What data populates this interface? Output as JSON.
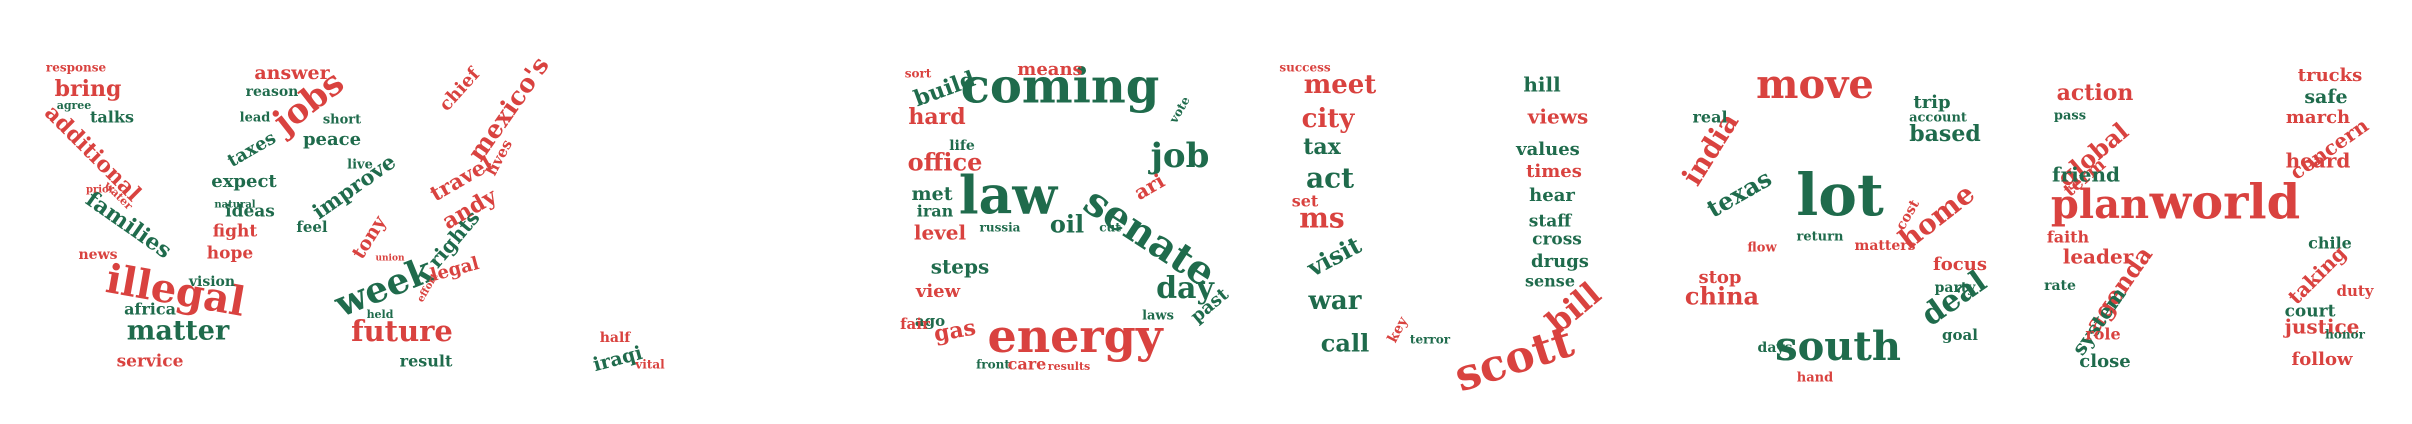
{
  "colors": {
    "red": "#d9423f",
    "green": "#1f6b4c",
    "background": "#ffffff"
  },
  "words": [
    {
      "text": "illegal",
      "color": "red",
      "letter": "W"
    },
    {
      "text": "matter",
      "color": "green",
      "letter": "W"
    },
    {
      "text": "jobs",
      "color": "red",
      "letter": "W"
    },
    {
      "text": "week",
      "color": "green",
      "letter": "W"
    },
    {
      "text": "future",
      "color": "red",
      "letter": "W"
    },
    {
      "text": "families",
      "color": "green",
      "letter": "W"
    },
    {
      "text": "bring",
      "color": "red",
      "letter": "W"
    },
    {
      "text": "additional",
      "color": "red",
      "letter": "W"
    },
    {
      "text": "talks",
      "color": "green",
      "letter": "W"
    },
    {
      "text": "answer",
      "color": "red",
      "letter": "W"
    },
    {
      "text": "reason",
      "color": "green",
      "letter": "W"
    },
    {
      "text": "peace",
      "color": "green",
      "letter": "W"
    },
    {
      "text": "improve",
      "color": "green",
      "letter": "W"
    },
    {
      "text": "taxes",
      "color": "green",
      "letter": "W"
    },
    {
      "text": "expect",
      "color": "green",
      "letter": "W"
    },
    {
      "text": "ideas",
      "color": "green",
      "letter": "W"
    },
    {
      "text": "fight",
      "color": "red",
      "letter": "W"
    },
    {
      "text": "hope",
      "color": "red",
      "letter": "W"
    },
    {
      "text": "feel",
      "color": "green",
      "letter": "W"
    },
    {
      "text": "tony",
      "color": "red",
      "letter": "W"
    },
    {
      "text": "africa",
      "color": "green",
      "letter": "W"
    },
    {
      "text": "service",
      "color": "red",
      "letter": "W"
    },
    {
      "text": "result",
      "color": "green",
      "letter": "W"
    },
    {
      "text": "mexico's",
      "color": "red",
      "letter": "W"
    },
    {
      "text": "chief",
      "color": "red",
      "letter": "W"
    },
    {
      "text": "travel",
      "color": "red",
      "letter": "W"
    },
    {
      "text": "lives",
      "color": "red",
      "letter": "W"
    },
    {
      "text": "andy",
      "color": "red",
      "letter": "W"
    },
    {
      "text": "rights",
      "color": "green",
      "letter": "W"
    },
    {
      "text": "legal",
      "color": "red",
      "letter": "W"
    },
    {
      "text": "news",
      "color": "red",
      "letter": "W"
    },
    {
      "text": "vision",
      "color": "green",
      "letter": "W"
    },
    {
      "text": "lead",
      "color": "green",
      "letter": "W"
    },
    {
      "text": "short",
      "color": "green",
      "letter": "W"
    },
    {
      "text": "live",
      "color": "green",
      "letter": "W"
    },
    {
      "text": "held",
      "color": "green",
      "letter": "W"
    },
    {
      "text": "response",
      "color": "red",
      "letter": "W"
    },
    {
      "text": "agree",
      "color": "green",
      "letter": "W"
    },
    {
      "text": "water",
      "color": "red",
      "letter": "W"
    },
    {
      "text": "prior",
      "color": "red",
      "letter": "W"
    },
    {
      "text": "natural",
      "color": "green",
      "letter": "W"
    },
    {
      "text": "union",
      "color": "red",
      "letter": "W"
    },
    {
      "text": "effort",
      "color": "red",
      "letter": "W"
    },
    {
      "text": "half",
      "color": "red",
      "letter": "."
    },
    {
      "text": "iraqi",
      "color": "green",
      "letter": "."
    },
    {
      "text": "vital",
      "color": "red",
      "letter": "."
    },
    {
      "text": "coming",
      "color": "green",
      "letter": "B"
    },
    {
      "text": "law",
      "color": "green",
      "letter": "B"
    },
    {
      "text": "energy",
      "color": "red",
      "letter": "B"
    },
    {
      "text": "senate",
      "color": "green",
      "letter": "B"
    },
    {
      "text": "job",
      "color": "green",
      "letter": "B"
    },
    {
      "text": "day",
      "color": "green",
      "letter": "B"
    },
    {
      "text": "means",
      "color": "red",
      "letter": "B"
    },
    {
      "text": "build",
      "color": "green",
      "letter": "B"
    },
    {
      "text": "hard",
      "color": "red",
      "letter": "B"
    },
    {
      "text": "office",
      "color": "red",
      "letter": "B"
    },
    {
      "text": "life",
      "color": "green",
      "letter": "B"
    },
    {
      "text": "met",
      "color": "green",
      "letter": "B"
    },
    {
      "text": "iran",
      "color": "green",
      "letter": "B"
    },
    {
      "text": "level",
      "color": "red",
      "letter": "B"
    },
    {
      "text": "oil",
      "color": "green",
      "letter": "B"
    },
    {
      "text": "steps",
      "color": "green",
      "letter": "B"
    },
    {
      "text": "view",
      "color": "red",
      "letter": "B"
    },
    {
      "text": "ago",
      "color": "green",
      "letter": "B"
    },
    {
      "text": "gas",
      "color": "red",
      "letter": "B"
    },
    {
      "text": "fair",
      "color": "red",
      "letter": "B"
    },
    {
      "text": "ari",
      "color": "red",
      "letter": "B"
    },
    {
      "text": "past",
      "color": "green",
      "letter": "B"
    },
    {
      "text": "care",
      "color": "red",
      "letter": "B"
    },
    {
      "text": "laws",
      "color": "green",
      "letter": "B"
    },
    {
      "text": "front",
      "color": "green",
      "letter": "B"
    },
    {
      "text": "cut",
      "color": "green",
      "letter": "B"
    },
    {
      "text": "sort",
      "color": "red",
      "letter": "B"
    },
    {
      "text": "vote",
      "color": "green",
      "letter": "B"
    },
    {
      "text": "russia",
      "color": "green",
      "letter": "B"
    },
    {
      "text": "results",
      "color": "red",
      "letter": "B"
    },
    {
      "text": "scott",
      "color": "red",
      "letter": "U"
    },
    {
      "text": "bill",
      "color": "red",
      "letter": "U"
    },
    {
      "text": "meet",
      "color": "red",
      "letter": "U"
    },
    {
      "text": "city",
      "color": "red",
      "letter": "U"
    },
    {
      "text": "tax",
      "color": "green",
      "letter": "U"
    },
    {
      "text": "act",
      "color": "green",
      "letter": "U"
    },
    {
      "text": "ms",
      "color": "red",
      "letter": "U"
    },
    {
      "text": "set",
      "color": "red",
      "letter": "U"
    },
    {
      "text": "visit",
      "color": "green",
      "letter": "U"
    },
    {
      "text": "war",
      "color": "green",
      "letter": "U"
    },
    {
      "text": "call",
      "color": "green",
      "letter": "U"
    },
    {
      "text": "hill",
      "color": "green",
      "letter": "U"
    },
    {
      "text": "views",
      "color": "red",
      "letter": "U"
    },
    {
      "text": "values",
      "color": "green",
      "letter": "U"
    },
    {
      "text": "times",
      "color": "red",
      "letter": "U"
    },
    {
      "text": "hear",
      "color": "green",
      "letter": "U"
    },
    {
      "text": "staff",
      "color": "green",
      "letter": "U"
    },
    {
      "text": "cross",
      "color": "green",
      "letter": "U"
    },
    {
      "text": "drugs",
      "color": "green",
      "letter": "U"
    },
    {
      "text": "sense",
      "color": "green",
      "letter": "U"
    },
    {
      "text": "key",
      "color": "red",
      "letter": "U"
    },
    {
      "text": "terror",
      "color": "green",
      "letter": "U"
    },
    {
      "text": "success",
      "color": "red",
      "letter": "U"
    },
    {
      "text": "lot",
      "color": "green",
      "letter": "S"
    },
    {
      "text": "move",
      "color": "red",
      "letter": "S"
    },
    {
      "text": "south",
      "color": "green",
      "letter": "S"
    },
    {
      "text": "india",
      "color": "red",
      "letter": "S"
    },
    {
      "text": "texas",
      "color": "green",
      "letter": "S"
    },
    {
      "text": "china",
      "color": "red",
      "letter": "S"
    },
    {
      "text": "deal",
      "color": "green",
      "letter": "S"
    },
    {
      "text": "home",
      "color": "red",
      "letter": "S"
    },
    {
      "text": "stop",
      "color": "red",
      "letter": "S"
    },
    {
      "text": "based",
      "color": "green",
      "letter": "S"
    },
    {
      "text": "trip",
      "color": "green",
      "letter": "S"
    },
    {
      "text": "focus",
      "color": "red",
      "letter": "S"
    },
    {
      "text": "account",
      "color": "green",
      "letter": "S"
    },
    {
      "text": "real",
      "color": "green",
      "letter": "S"
    },
    {
      "text": "flow",
      "color": "red",
      "letter": "S"
    },
    {
      "text": "return",
      "color": "green",
      "letter": "S"
    },
    {
      "text": "matters",
      "color": "red",
      "letter": "S"
    },
    {
      "text": "party",
      "color": "green",
      "letter": "S"
    },
    {
      "text": "goal",
      "color": "green",
      "letter": "S"
    },
    {
      "text": "days",
      "color": "green",
      "letter": "S"
    },
    {
      "text": "hand",
      "color": "red",
      "letter": "S"
    },
    {
      "text": "cost",
      "color": "red",
      "letter": "S"
    },
    {
      "text": "world",
      "color": "red",
      "letter": "H"
    },
    {
      "text": "plan",
      "color": "red",
      "letter": "H"
    },
    {
      "text": "global",
      "color": "red",
      "letter": "H"
    },
    {
      "text": "action",
      "color": "red",
      "letter": "H"
    },
    {
      "text": "term",
      "color": "red",
      "letter": "H"
    },
    {
      "text": "friend",
      "color": "green",
      "letter": "H"
    },
    {
      "text": "leader",
      "color": "red",
      "letter": "H"
    },
    {
      "text": "agenda",
      "color": "red",
      "letter": "H"
    },
    {
      "text": "system",
      "color": "green",
      "letter": "H"
    },
    {
      "text": "close",
      "color": "green",
      "letter": "H"
    },
    {
      "text": "faith",
      "color": "red",
      "letter": "H"
    },
    {
      "text": "rate",
      "color": "green",
      "letter": "H"
    },
    {
      "text": "role",
      "color": "red",
      "letter": "H"
    },
    {
      "text": "trucks",
      "color": "red",
      "letter": "H"
    },
    {
      "text": "safe",
      "color": "green",
      "letter": "H"
    },
    {
      "text": "march",
      "color": "red",
      "letter": "H"
    },
    {
      "text": "concern",
      "color": "red",
      "letter": "H"
    },
    {
      "text": "heard",
      "color": "red",
      "letter": "H"
    },
    {
      "text": "chile",
      "color": "green",
      "letter": "H"
    },
    {
      "text": "taking",
      "color": "red",
      "letter": "H"
    },
    {
      "text": "duty",
      "color": "red",
      "letter": "H"
    },
    {
      "text": "court",
      "color": "green",
      "letter": "H"
    },
    {
      "text": "justice",
      "color": "red",
      "letter": "H"
    },
    {
      "text": "follow",
      "color": "red",
      "letter": "H"
    },
    {
      "text": "pass",
      "color": "green",
      "letter": "H"
    },
    {
      "text": "honor",
      "color": "green",
      "letter": "H"
    }
  ]
}
